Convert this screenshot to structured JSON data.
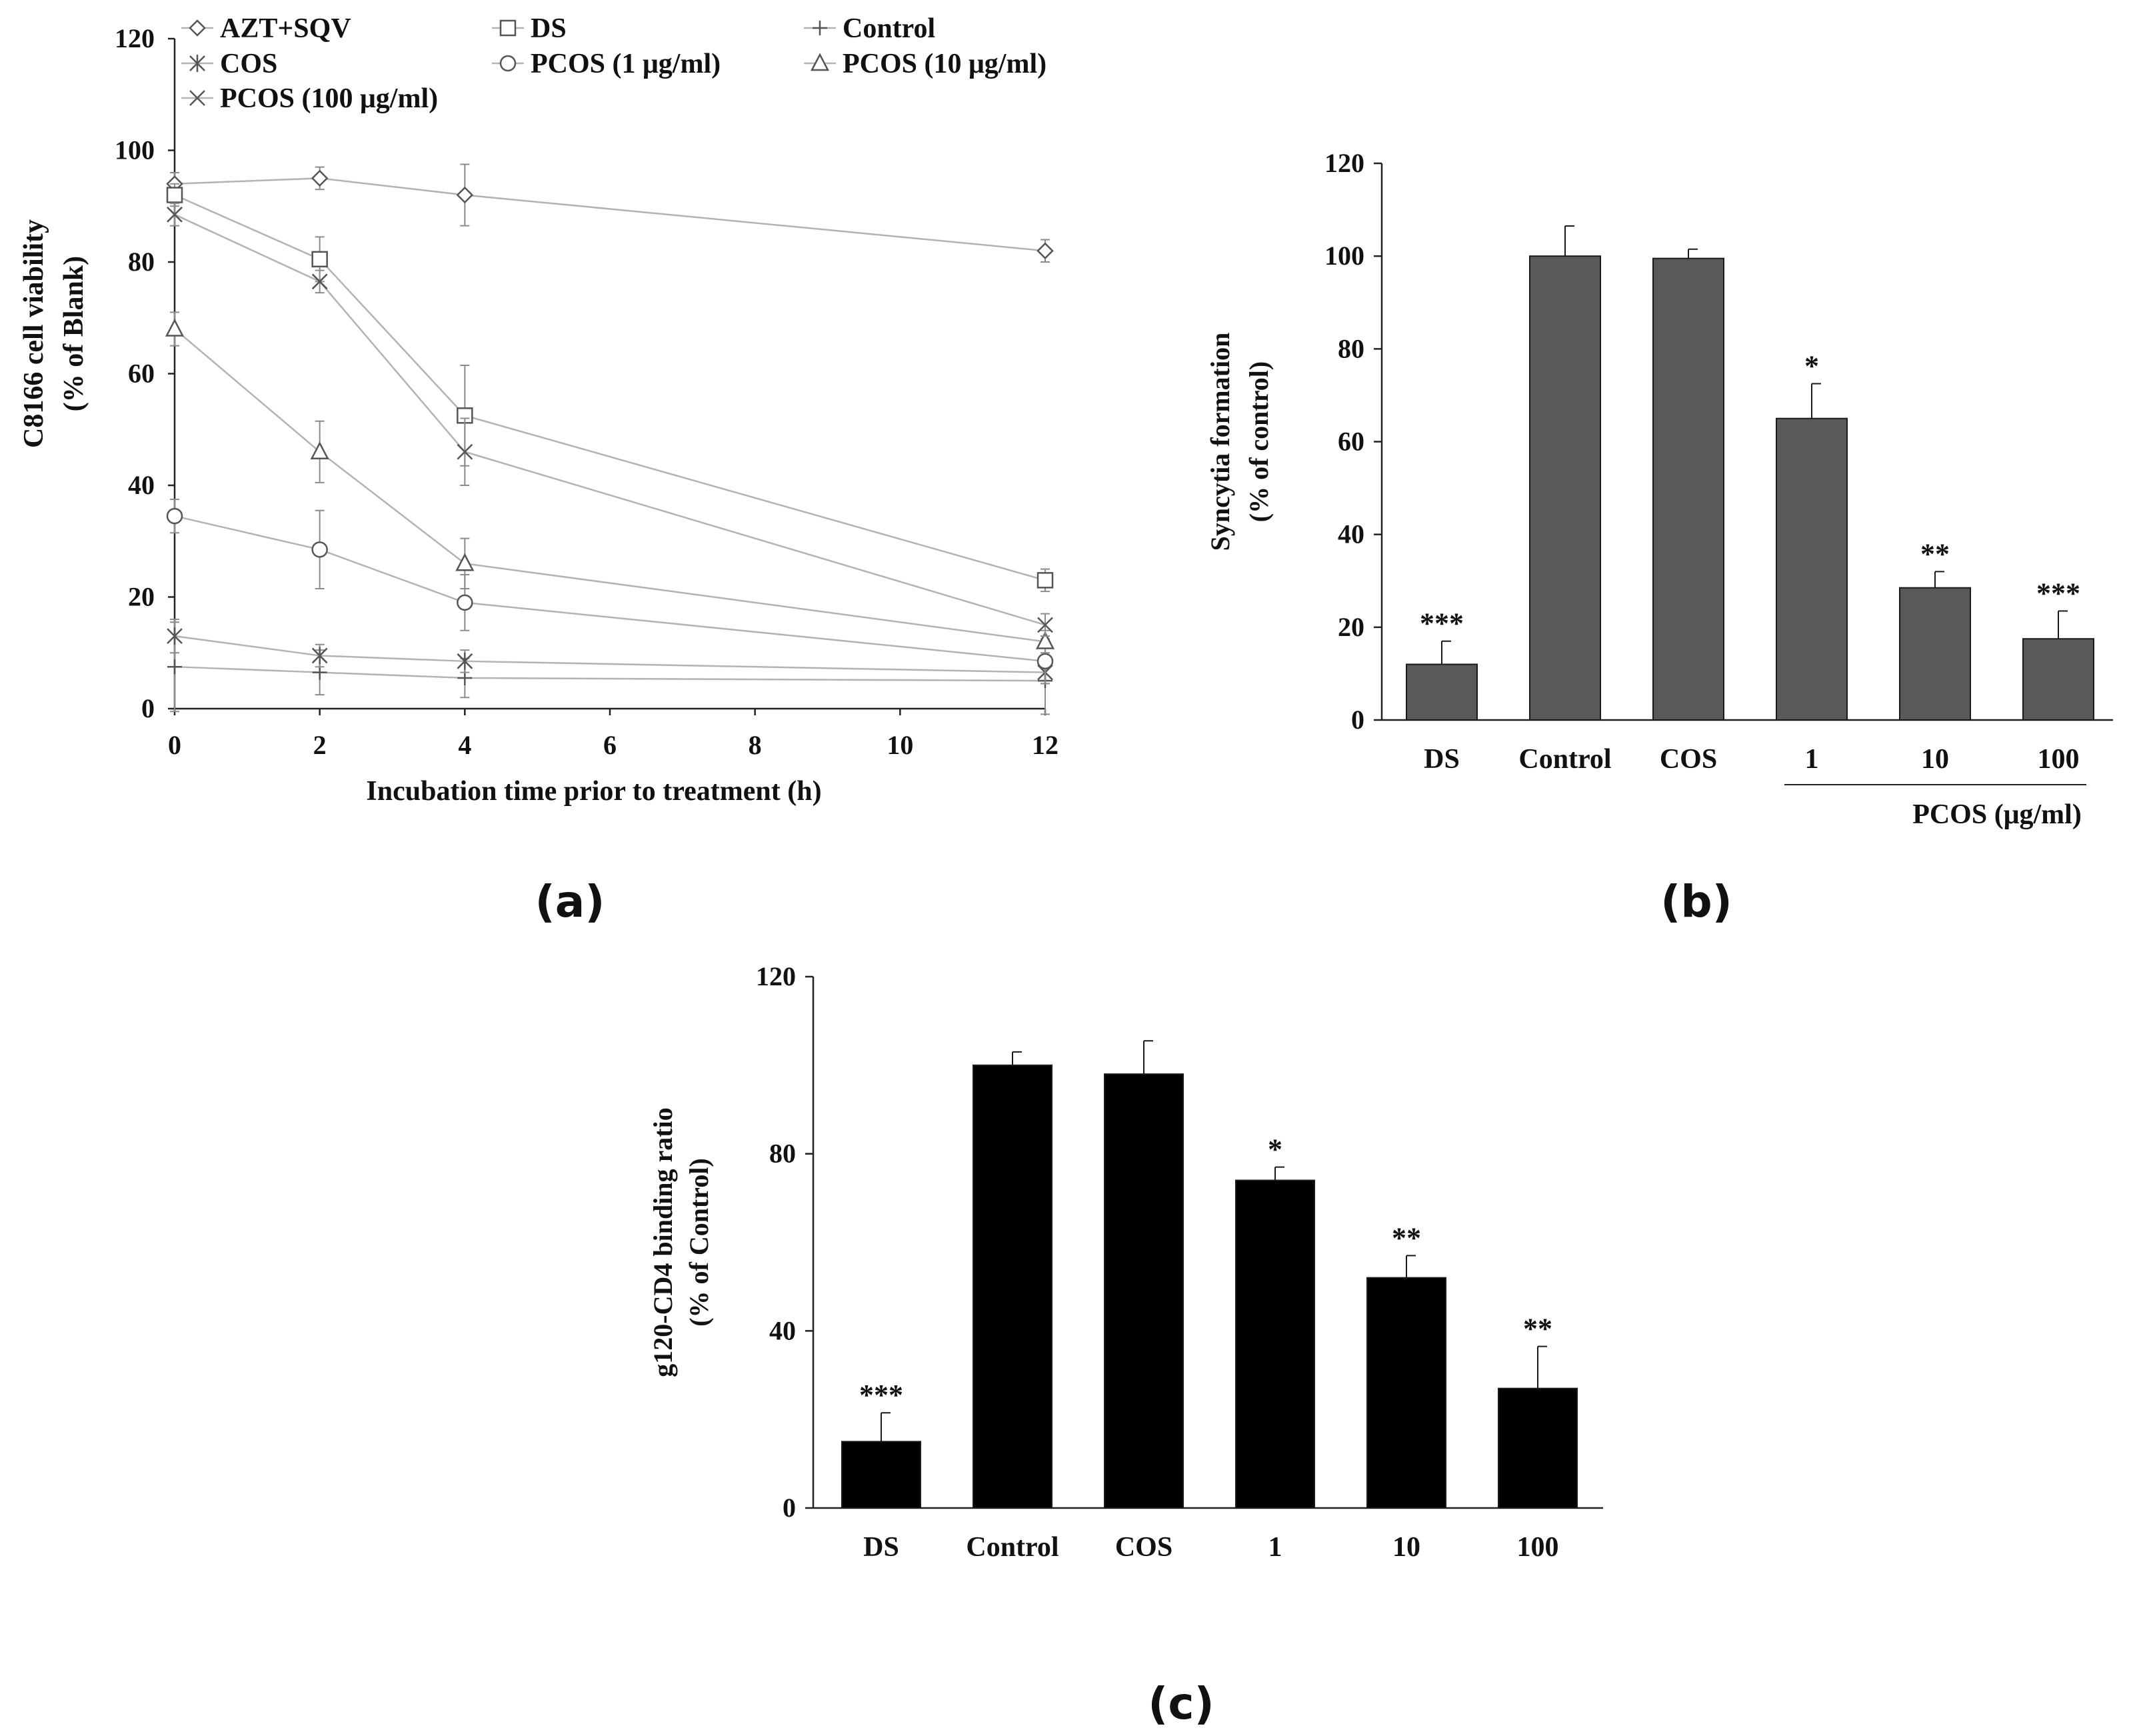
{
  "chart_data": [
    {
      "id": "a",
      "type": "line",
      "panel_label": "(a)",
      "xlabel": "Incubation time prior to treatment (h)",
      "ylabel": [
        "C8166 cell viability",
        "(% of Blank)"
      ],
      "xlim": [
        0,
        12
      ],
      "ylim": [
        0,
        120
      ],
      "xticks": [
        0,
        2,
        4,
        6,
        8,
        10,
        12
      ],
      "yticks": [
        0,
        20,
        40,
        60,
        80,
        100,
        120
      ],
      "x": [
        0,
        2,
        4,
        12
      ],
      "legend_position": "top",
      "series": [
        {
          "name": "AZT+SQV",
          "marker": "diamond",
          "values": [
            94,
            95,
            92,
            82
          ],
          "errors": [
            2,
            2,
            5.5,
            2
          ]
        },
        {
          "name": "DS",
          "marker": "square",
          "values": [
            92,
            80.5,
            52.5,
            23
          ],
          "errors": [
            2,
            4,
            9,
            2
          ]
        },
        {
          "name": "Control",
          "marker": "plus",
          "values": [
            7.5,
            6.5,
            5.5,
            5
          ],
          "errors": [
            8,
            4,
            3.5,
            6
          ]
        },
        {
          "name": "COS",
          "marker": "asterisk",
          "values": [
            13,
            9.5,
            8.5,
            6.5
          ],
          "errors": [
            3,
            2,
            2,
            2
          ]
        },
        {
          "name": "PCOS (1 μg/ml)",
          "marker": "circle",
          "values": [
            34.5,
            28.5,
            19,
            8.5
          ],
          "errors": [
            3,
            7,
            5,
            4
          ]
        },
        {
          "name": "PCOS (10 μg/ml)",
          "marker": "triangle",
          "values": [
            68,
            46,
            26,
            12
          ],
          "errors": [
            3,
            5.5,
            4.5,
            2
          ]
        },
        {
          "name": "PCOS (100 μg/ml)",
          "marker": "x",
          "values": [
            88.5,
            76.5,
            46,
            15
          ],
          "errors": [
            2,
            2,
            6,
            2
          ]
        }
      ]
    },
    {
      "id": "b",
      "type": "bar",
      "panel_label": "(b)",
      "ylabel": [
        "Syncytia formation",
        "(% of control)"
      ],
      "ylim": [
        0,
        120
      ],
      "yticks": [
        0,
        20,
        40,
        60,
        80,
        100,
        120
      ],
      "categories": [
        "DS",
        "Control",
        "COS",
        "1",
        "10",
        "100"
      ],
      "values": [
        12,
        100,
        99.5,
        65,
        28.5,
        17.5
      ],
      "errors": [
        5,
        6.5,
        2,
        7.5,
        3.5,
        6
      ],
      "significance": [
        "***",
        "",
        "",
        "*",
        "**",
        "***"
      ],
      "group_label": "PCOS (μg/ml)",
      "bar_color": "#595959"
    },
    {
      "id": "c",
      "type": "bar",
      "panel_label": "(c)",
      "ylabel": [
        "g120-CD4 binding ratio",
        "(% of Control)"
      ],
      "ylim": [
        0,
        120
      ],
      "yticks": [
        0,
        40,
        80,
        120
      ],
      "categories": [
        "DS",
        "Control",
        "COS",
        "1",
        "10",
        "100"
      ],
      "values": [
        15,
        100,
        98,
        74,
        52,
        27
      ],
      "errors": [
        6.5,
        3,
        7.5,
        3,
        5,
        9.5
      ],
      "significance": [
        "***",
        "",
        "",
        "*",
        "**",
        "**"
      ],
      "bar_color": "#000000"
    }
  ]
}
